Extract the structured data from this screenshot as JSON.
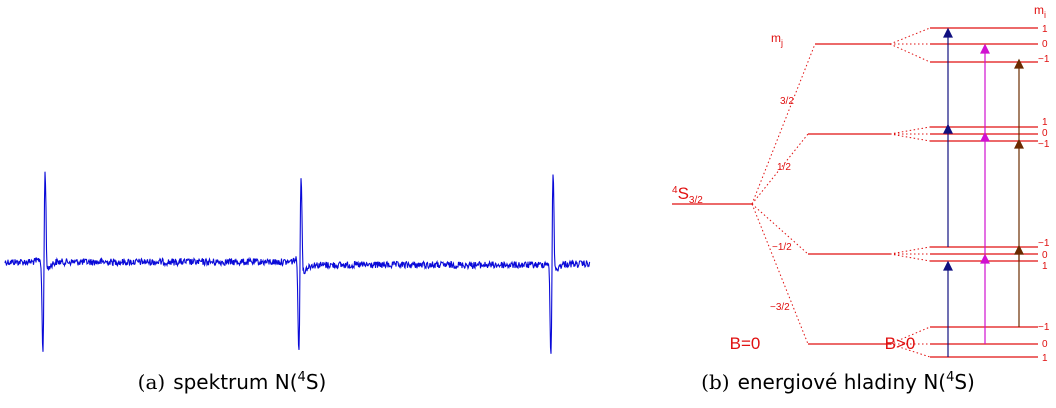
{
  "colors": {
    "spectrum": "#0a0ad8",
    "levels": "#e01010",
    "arrow_blue": "#101080",
    "arrow_magenta": "#d010d0",
    "arrow_brown": "#6a2a00",
    "caption": "#000000"
  },
  "panel_a": {
    "caption_prefix": "(a)",
    "caption_text": "spektrum N(",
    "caption_sup": "4",
    "caption_end": "S)"
  },
  "panel_b": {
    "caption_prefix": "(b)",
    "caption_text": "energiové hladiny N(",
    "caption_sup": "4",
    "caption_end": "S)",
    "ground_state": "S",
    "ground_state_pre": "4",
    "ground_state_sub": "3/2",
    "mj_label": "m",
    "mj_sub": "j",
    "mi_label": "m",
    "mi_sub": "i",
    "b_zero": "B=0",
    "b_pos": "B>0",
    "mj_values": [
      "3/2",
      "1/2",
      "−1/2",
      "−3/2"
    ],
    "mi_group_3_2": [
      "1",
      "0",
      "−1"
    ],
    "mi_group_1_2": [
      "1",
      "0",
      "−1"
    ],
    "mi_group_m1_2": [
      "−1",
      "0",
      "1"
    ],
    "mi_group_m3_2": [
      "−1",
      "0",
      "1"
    ]
  }
}
